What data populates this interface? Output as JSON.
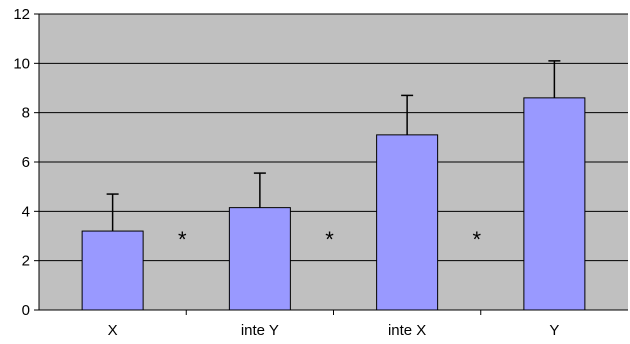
{
  "chart_data": {
    "type": "bar",
    "categories": [
      "X",
      "inte Y",
      "inte X",
      "Y"
    ],
    "values": [
      3.2,
      4.15,
      7.1,
      8.6
    ],
    "error_upper": [
      4.7,
      5.55,
      8.7,
      10.1
    ],
    "ylim": [
      0,
      12
    ],
    "yticks": [
      0,
      2,
      4,
      6,
      8,
      10,
      12
    ],
    "grid": true,
    "significance_markers": [
      "*",
      "*",
      "*"
    ],
    "colors": {
      "bar_fill": "#9999ff",
      "bar_stroke": "#000000",
      "plot_background": "#c0c0c0",
      "gridline": "#000000"
    }
  }
}
